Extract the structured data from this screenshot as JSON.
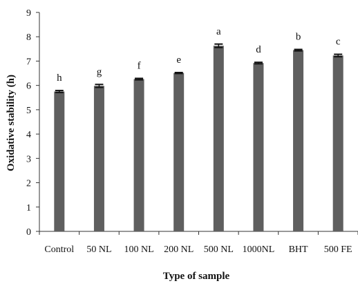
{
  "chart_data": {
    "type": "bar",
    "title": "",
    "xlabel": "Type of sample",
    "ylabel": "Oxidative stability (h)",
    "categories": [
      "Control",
      "50 NL",
      "100 NL",
      "200 NL",
      "500 NL",
      "1000NL",
      "BHT",
      "500 FE"
    ],
    "values": [
      5.75,
      5.98,
      6.26,
      6.51,
      7.63,
      6.92,
      7.45,
      7.23
    ],
    "errors": [
      0.04,
      0.06,
      0.03,
      0.02,
      0.07,
      0.03,
      0.03,
      0.05
    ],
    "significance": [
      "h",
      "g",
      "f",
      "e",
      "a",
      "d",
      "b",
      "c"
    ],
    "ylim": [
      0,
      9
    ],
    "yticks": [
      "0",
      "1",
      "2",
      "3",
      "4",
      "5",
      "6",
      "7",
      "8",
      "9"
    ],
    "grid": false,
    "legend": "none",
    "colors": {
      "bar": "#5f5f5f",
      "axis": "#333333",
      "error": "#111111"
    }
  }
}
